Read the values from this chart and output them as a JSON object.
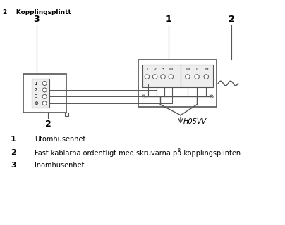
{
  "background_color": "#ffffff",
  "text_color": "#000000",
  "line_color": "#555555",
  "legend_items": [
    {
      "num": "1",
      "text": "Utomhusenhet"
    },
    {
      "num": "2",
      "text": "Fäst kablarna ordentligt med skruvarna på kopplingsplinten."
    },
    {
      "num": "3",
      "text": "Inomhusenhet"
    }
  ],
  "label_1": "1",
  "label_2": "2",
  "label_3": "3",
  "h05vv_label": "H05VV",
  "terminal_labels_left": [
    "1",
    "2",
    "3",
    "⊕"
  ],
  "terminal_labels_right": [
    "⊕",
    "L",
    "N"
  ]
}
